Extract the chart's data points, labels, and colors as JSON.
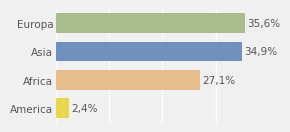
{
  "categories": [
    "Europa",
    "Asia",
    "Africa",
    "America"
  ],
  "values": [
    35.6,
    34.9,
    27.1,
    2.4
  ],
  "labels": [
    "35,6%",
    "34,9%",
    "27,1%",
    "2,4%"
  ],
  "bar_colors": [
    "#a9bc8c",
    "#7090be",
    "#e8be8e",
    "#e8d64c"
  ],
  "background_color": "#f0f0f0",
  "grid_color": "#ffffff",
  "text_color": "#555555",
  "xlim": [
    0,
    40
  ],
  "bar_height": 0.7,
  "label_fontsize": 7.5,
  "category_fontsize": 7.5
}
